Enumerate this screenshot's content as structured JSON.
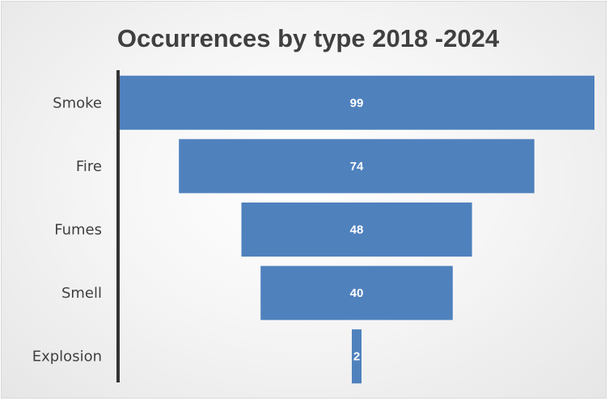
{
  "chart_data": {
    "type": "bar",
    "subtype": "funnel",
    "title": "Occurrences by type 2018 -2024",
    "categories": [
      "Smoke",
      "Fire",
      "Fumes",
      "Smell",
      "Explosion"
    ],
    "values": [
      99,
      74,
      48,
      40,
      2
    ],
    "bar_color": "#4f81bd",
    "axis_color": "#333333",
    "grid": false,
    "legend": "none",
    "data_labels": true
  }
}
